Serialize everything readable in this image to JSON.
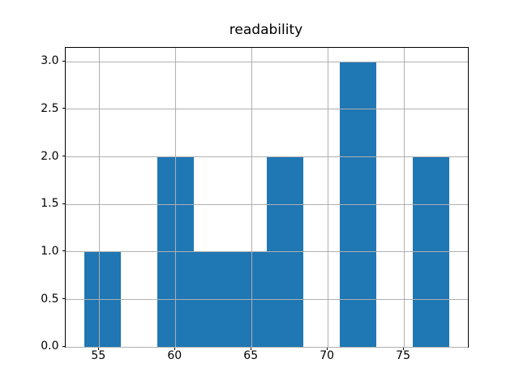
{
  "title": "readability",
  "chart_data": {
    "type": "bar",
    "subtype": "histogram",
    "title": "readability",
    "xlabel": "",
    "ylabel": "",
    "bin_edges": [
      54.0,
      56.4,
      58.8,
      61.2,
      63.6,
      66.0,
      68.4,
      70.8,
      73.2,
      75.6,
      78.0
    ],
    "counts": [
      1,
      0,
      2,
      1,
      1,
      2,
      0,
      3,
      0,
      2
    ],
    "xlim": [
      52.8,
      79.2
    ],
    "ylim": [
      0,
      3.15
    ],
    "xticks": [
      55,
      60,
      65,
      70,
      75
    ],
    "xtick_labels": [
      "55",
      "60",
      "65",
      "70",
      "75"
    ],
    "yticks": [
      0.0,
      0.5,
      1.0,
      1.5,
      2.0,
      2.5,
      3.0
    ],
    "ytick_labels": [
      "0.0",
      "0.5",
      "1.0",
      "1.5",
      "2.0",
      "2.5",
      "3.0"
    ],
    "grid": true,
    "grid_above_bars": true,
    "legend": null,
    "colors": {
      "bar": "#1f77b4",
      "grid": "#b0b0b0",
      "spine": "#000000",
      "background": "#ffffff",
      "text": "#000000"
    }
  }
}
